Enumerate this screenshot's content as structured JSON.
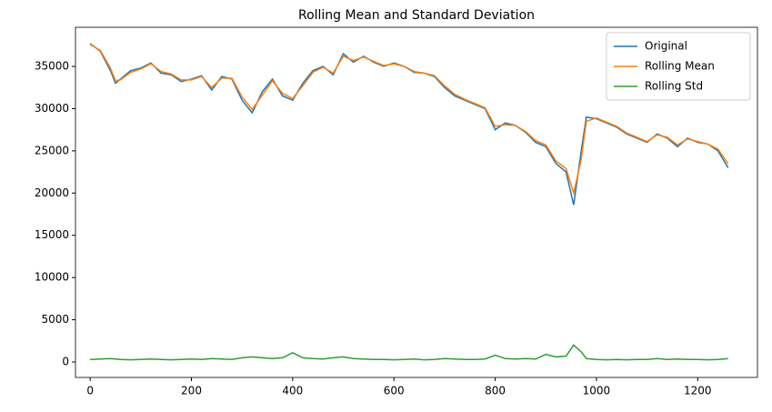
{
  "chart_data": {
    "type": "line",
    "title": "Rolling Mean and Standard Deviation",
    "x": [
      0,
      20,
      40,
      50,
      60,
      80,
      100,
      120,
      140,
      160,
      180,
      200,
      220,
      240,
      260,
      280,
      300,
      320,
      340,
      360,
      380,
      400,
      420,
      440,
      460,
      480,
      500,
      520,
      540,
      560,
      580,
      600,
      620,
      640,
      660,
      680,
      700,
      720,
      740,
      760,
      780,
      800,
      820,
      840,
      860,
      880,
      900,
      920,
      940,
      955,
      970,
      980,
      1000,
      1020,
      1040,
      1060,
      1080,
      1100,
      1120,
      1140,
      1160,
      1180,
      1200,
      1220,
      1240,
      1260
    ],
    "series": [
      {
        "name": "Original",
        "color": "#1f77b4",
        "values": [
          37700,
          36800,
          34500,
          33000,
          33500,
          34500,
          34800,
          35400,
          34200,
          34000,
          33200,
          33500,
          33900,
          32200,
          33800,
          33500,
          31000,
          29500,
          32000,
          33500,
          31500,
          31000,
          33000,
          34500,
          35000,
          34000,
          36500,
          35500,
          36200,
          35500,
          35000,
          35400,
          35000,
          34300,
          34200,
          33800,
          32500,
          31500,
          31000,
          30500,
          30000,
          27500,
          28300,
          28000,
          27200,
          26000,
          25500,
          23500,
          22500,
          18600,
          25000,
          29000,
          28800,
          28300,
          27800,
          27000,
          26500,
          26000,
          27000,
          26500,
          25500,
          26500,
          26000,
          25800,
          25000,
          23000
        ]
      },
      {
        "name": "Rolling Mean",
        "color": "#ff7f0e",
        "values": [
          37600,
          36900,
          34800,
          33300,
          33400,
          34300,
          34700,
          35300,
          34400,
          34100,
          33400,
          33400,
          33800,
          32500,
          33600,
          33600,
          31400,
          29900,
          31600,
          33300,
          31800,
          31200,
          32700,
          34300,
          34900,
          34200,
          36200,
          35700,
          36100,
          35600,
          35100,
          35300,
          35000,
          34400,
          34200,
          33900,
          32700,
          31700,
          31100,
          30600,
          30100,
          27900,
          28100,
          28000,
          27300,
          26200,
          25700,
          23800,
          22900,
          20000,
          24000,
          28500,
          28900,
          28400,
          27900,
          27100,
          26600,
          26100,
          26900,
          26600,
          25700,
          26400,
          26100,
          25800,
          25200,
          23500
        ]
      },
      {
        "name": "Rolling Std",
        "color": "#2ca02c",
        "values": [
          300,
          350,
          400,
          350,
          300,
          250,
          300,
          350,
          300,
          250,
          300,
          350,
          300,
          400,
          350,
          300,
          500,
          600,
          500,
          400,
          500,
          1100,
          500,
          400,
          350,
          500,
          600,
          400,
          350,
          300,
          300,
          250,
          300,
          350,
          250,
          300,
          400,
          350,
          300,
          300,
          350,
          800,
          400,
          350,
          400,
          350,
          900,
          600,
          700,
          2000,
          1200,
          400,
          300,
          250,
          300,
          250,
          300,
          300,
          400,
          300,
          350,
          300,
          300,
          250,
          300,
          400
        ]
      }
    ],
    "xlim": [
      -29,
      1318
    ],
    "ylim": [
      -1830,
      39630
    ],
    "xticks": [
      0,
      200,
      400,
      600,
      800,
      1000,
      1200
    ],
    "yticks": [
      0,
      5000,
      10000,
      15000,
      20000,
      25000,
      30000,
      35000
    ],
    "legend": "upper right"
  }
}
